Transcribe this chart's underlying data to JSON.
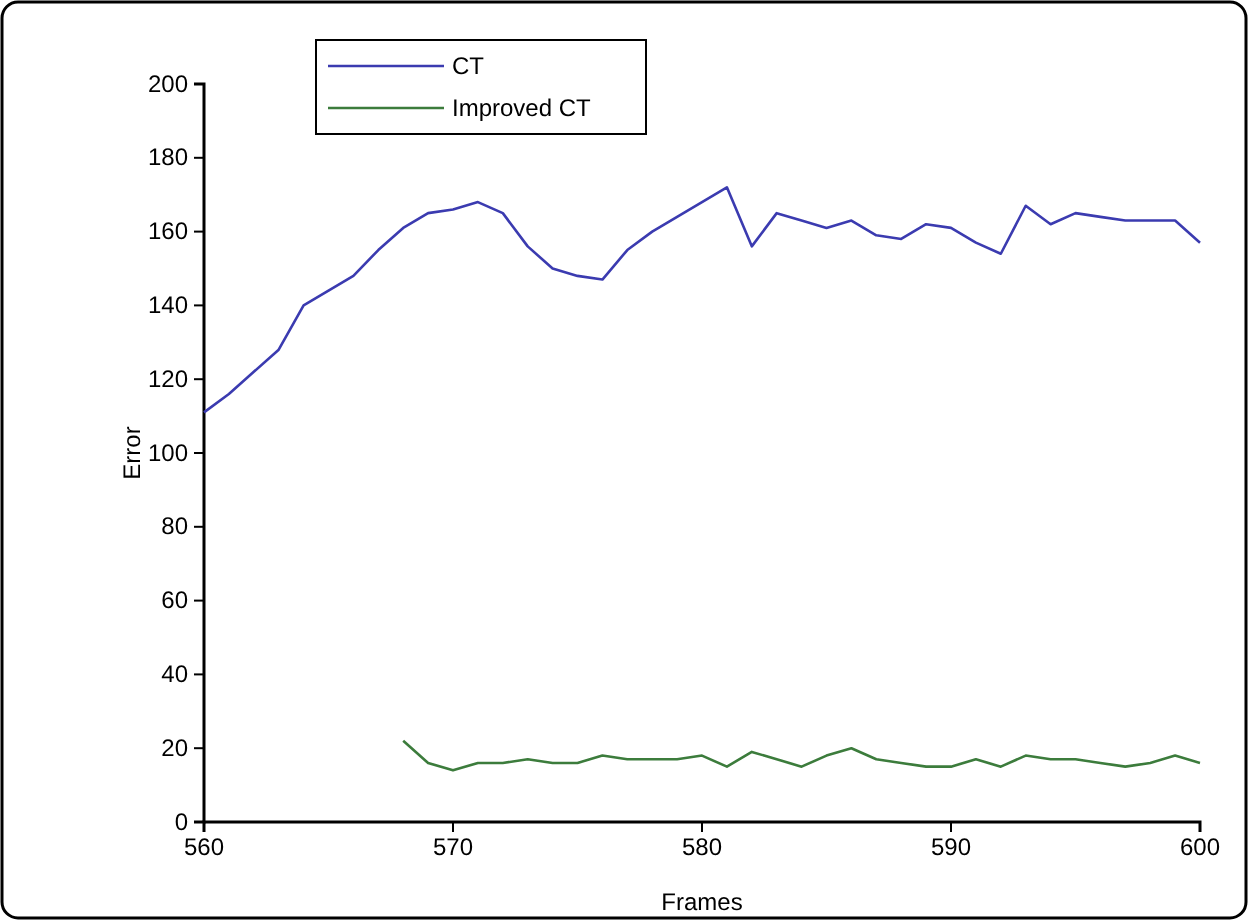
{
  "chart_data": {
    "type": "line",
    "xlabel": "Frames",
    "ylabel": "Error",
    "xlim": [
      560,
      600
    ],
    "xticks": [
      560,
      570,
      580,
      590,
      600
    ],
    "ylim": [
      0,
      200
    ],
    "yticks": [
      0,
      20,
      40,
      60,
      80,
      100,
      120,
      140,
      160,
      180,
      200
    ],
    "legend": "top left",
    "grid": false,
    "series": [
      {
        "name": "CT",
        "color": "#3b3bb0",
        "x": [
          560,
          561,
          562,
          563,
          564,
          565,
          566,
          567,
          568,
          569,
          570,
          571,
          572,
          573,
          574,
          575,
          576,
          577,
          578,
          579,
          580,
          581,
          582,
          583,
          584,
          585,
          586,
          587,
          588,
          589,
          590,
          591,
          592,
          593,
          594,
          595,
          596,
          597,
          598,
          599,
          600
        ],
        "values": [
          111,
          116,
          122,
          128,
          140,
          144,
          148,
          155,
          161,
          165,
          166,
          168,
          165,
          156,
          150,
          148,
          147,
          155,
          160,
          164,
          168,
          172,
          156,
          165,
          163,
          161,
          163,
          159,
          158,
          162,
          161,
          157,
          154,
          167,
          162,
          165,
          164,
          163,
          163,
          163,
          157
        ]
      },
      {
        "name": "Improved CT",
        "color": "#3c7c3c",
        "x": [
          568,
          569,
          570,
          571,
          572,
          573,
          574,
          575,
          576,
          577,
          578,
          579,
          580,
          581,
          582,
          583,
          584,
          585,
          586,
          587,
          588,
          589,
          590,
          591,
          592,
          593,
          594,
          595,
          596,
          597,
          598,
          599,
          600
        ],
        "values": [
          22,
          16,
          14,
          16,
          16,
          17,
          16,
          16,
          18,
          17,
          17,
          17,
          18,
          15,
          19,
          17,
          15,
          18,
          20,
          17,
          16,
          15,
          15,
          17,
          15,
          18,
          17,
          17,
          16,
          15,
          16,
          18,
          16
        ]
      }
    ]
  }
}
